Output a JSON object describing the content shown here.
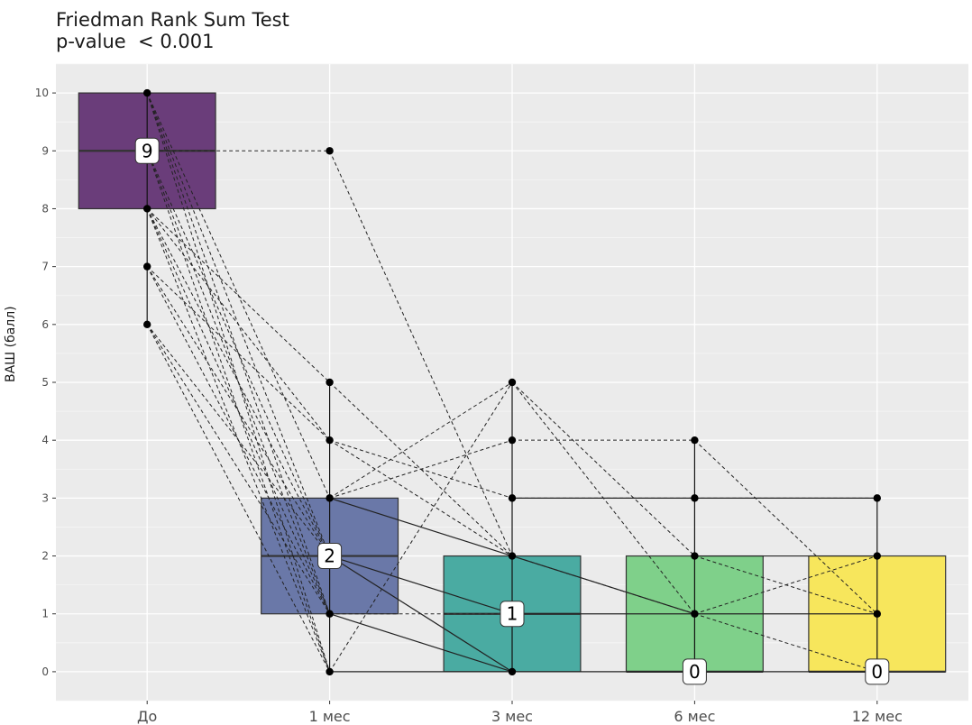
{
  "chart_data": {
    "type": "boxplot",
    "title": "Friedman Rank Sum Test",
    "subtitle": "p-value  < 0.001",
    "xlabel": "",
    "ylabel": "ВАШ (балл)",
    "ylim": [
      -0.5,
      10.5
    ],
    "grid": true,
    "categories": [
      "До",
      "1 мес",
      "3 мес",
      "6 мес",
      "12 мес"
    ],
    "y_ticks": [
      0,
      1,
      2,
      3,
      4,
      5,
      6,
      7,
      8,
      9,
      10
    ],
    "box_colors": [
      "#6a3d7a",
      "#6a78a8",
      "#4aaba2",
      "#7fd08a",
      "#f7e65c"
    ],
    "boxes": [
      {
        "q1": 8,
        "median": 9,
        "q3": 10,
        "whisker_low": 6,
        "whisker_high": 10
      },
      {
        "q1": 1,
        "median": 2,
        "q3": 3,
        "whisker_low": 0,
        "whisker_high": 5
      },
      {
        "q1": 0,
        "median": 1,
        "q3": 2,
        "whisker_low": 0,
        "whisker_high": 5
      },
      {
        "q1": 0,
        "median": 0,
        "q3": 2,
        "whisker_low": 0,
        "whisker_high": 4
      },
      {
        "q1": 0,
        "median": 0,
        "q3": 2,
        "whisker_low": 0,
        "whisker_high": 3
      }
    ],
    "median_labels": [
      "9",
      "2",
      "1",
      "0",
      "0"
    ],
    "points": [
      [
        10,
        9,
        8,
        7,
        6
      ],
      [
        9,
        5,
        4,
        3,
        2,
        1,
        0
      ],
      [
        5,
        4,
        3,
        2,
        0
      ],
      [
        4,
        3,
        2,
        1
      ],
      [
        3,
        2,
        1
      ]
    ],
    "paired_lines_dashed": [
      [
        0,
        9,
        1,
        9
      ],
      [
        0,
        10,
        1,
        3
      ],
      [
        0,
        10,
        1,
        2
      ],
      [
        0,
        10,
        1,
        1
      ],
      [
        0,
        10,
        1,
        0
      ],
      [
        0,
        9,
        1,
        2
      ],
      [
        0,
        9,
        1,
        1
      ],
      [
        0,
        9,
        1,
        0
      ],
      [
        0,
        8,
        1,
        5
      ],
      [
        0,
        8,
        1,
        4
      ],
      [
        0,
        8,
        1,
        2
      ],
      [
        0,
        8,
        1,
        1
      ],
      [
        0,
        8,
        1,
        0
      ],
      [
        0,
        7,
        1,
        4
      ],
      [
        0,
        7,
        1,
        2
      ],
      [
        0,
        7,
        1,
        1
      ],
      [
        0,
        6,
        1,
        1
      ],
      [
        0,
        6,
        1,
        0
      ],
      [
        0,
        6,
        1,
        2
      ],
      [
        1,
        9,
        2,
        2
      ],
      [
        1,
        5,
        2,
        2
      ],
      [
        1,
        4,
        2,
        3
      ],
      [
        1,
        4,
        2,
        2
      ],
      [
        1,
        3,
        2,
        5
      ],
      [
        1,
        3,
        2,
        4
      ],
      [
        1,
        1,
        2,
        1
      ],
      [
        1,
        0,
        2,
        5
      ],
      [
        2,
        5,
        3,
        2
      ],
      [
        2,
        5,
        3,
        1
      ],
      [
        2,
        4,
        3,
        4
      ],
      [
        2,
        3,
        3,
        3
      ],
      [
        2,
        2,
        3,
        1
      ],
      [
        3,
        4,
        4,
        1
      ],
      [
        3,
        3,
        4,
        3
      ],
      [
        3,
        2,
        4,
        1
      ],
      [
        3,
        1,
        4,
        0
      ],
      [
        3,
        1,
        4,
        2
      ]
    ],
    "paired_lines_solid": [
      [
        1,
        3,
        2,
        2
      ],
      [
        1,
        2,
        2,
        1
      ],
      [
        1,
        2,
        2,
        0
      ],
      [
        1,
        1,
        2,
        0
      ],
      [
        1,
        0,
        2,
        0
      ],
      [
        2,
        3,
        3,
        3
      ],
      [
        2,
        2,
        3,
        1
      ],
      [
        2,
        1,
        3,
        1
      ],
      [
        2,
        0,
        3,
        0
      ],
      [
        3,
        3,
        4,
        3
      ],
      [
        3,
        1,
        4,
        1
      ],
      [
        3,
        2,
        4,
        2
      ],
      [
        3,
        0,
        4,
        0
      ]
    ]
  }
}
